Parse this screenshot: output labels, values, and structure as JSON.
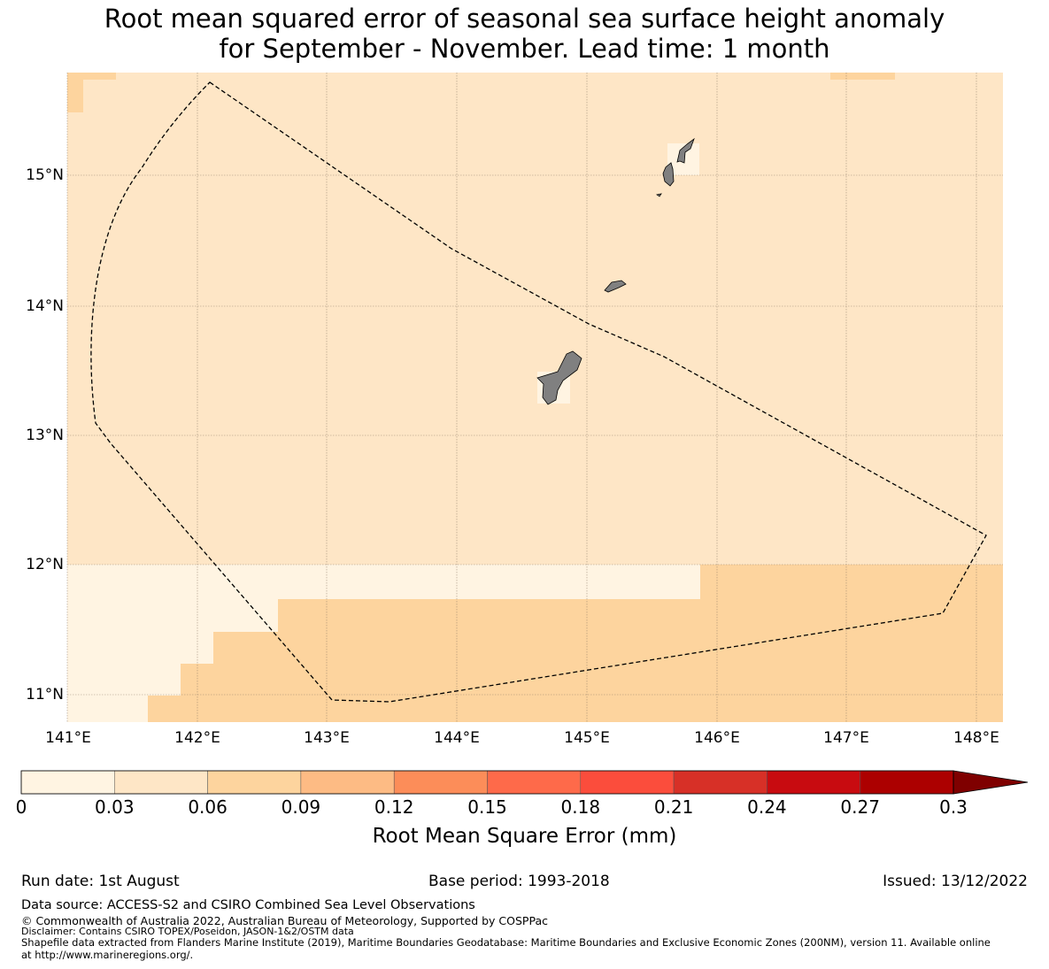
{
  "title_line1": "Root mean squared error of seasonal sea surface height anomaly",
  "title_line2": "for September - November. Lead time: 1 month",
  "axes": {
    "lat_ticks": [
      "15°N",
      "14°N",
      "13°N",
      "12°N",
      "11°N"
    ],
    "lon_ticks": [
      "141°E",
      "142°E",
      "143°E",
      "144°E",
      "145°E",
      "146°E",
      "147°E",
      "148°E"
    ]
  },
  "colorbar": {
    "title": "Root Mean Square Error (mm)",
    "ticks": [
      "0",
      "0.03",
      "0.06",
      "0.09",
      "0.12",
      "0.15",
      "0.18",
      "0.21",
      "0.24",
      "0.27",
      "0.3"
    ],
    "colors": [
      "#fff4e2",
      "#fee6c6",
      "#fdd49e",
      "#fdbb84",
      "#fc8d59",
      "#fe6a4a",
      "#fb4d3c",
      "#d73027",
      "#c80b10",
      "#ac0000",
      "#7f0000"
    ],
    "extend": "max"
  },
  "footer": {
    "run_date": "Run date: 1st August",
    "base_period": "Base period: 1993-2018",
    "issued": "Issued: 13/12/2022",
    "data_source": "Data source: ACCESS-S2 and CSIRO Combined Sea Level Observations",
    "copyright": "© Commonwealth of Australia 2022, Australian Bureau of Meteorology, Supported by COSPPac",
    "disclaimer": "Disclaimer: Contains CSIRO TOPEX/Poseidon, JASON-1&2/OSTM data",
    "shapefile1": "Shapefile data extracted from Flanders Marine Institute (2019), Maritime Boundaries Geodatabase: Maritime Boundaries and Exclusive Economic Zones (200NM), version 11. Available online",
    "shapefile2": "at http://www.marineregions.org/."
  },
  "map_colors": {
    "base": "#fee6c6",
    "lower": "#fdd49e",
    "pale": "#fff4e2",
    "land": "#808080",
    "grid": "#8c7a68"
  }
}
